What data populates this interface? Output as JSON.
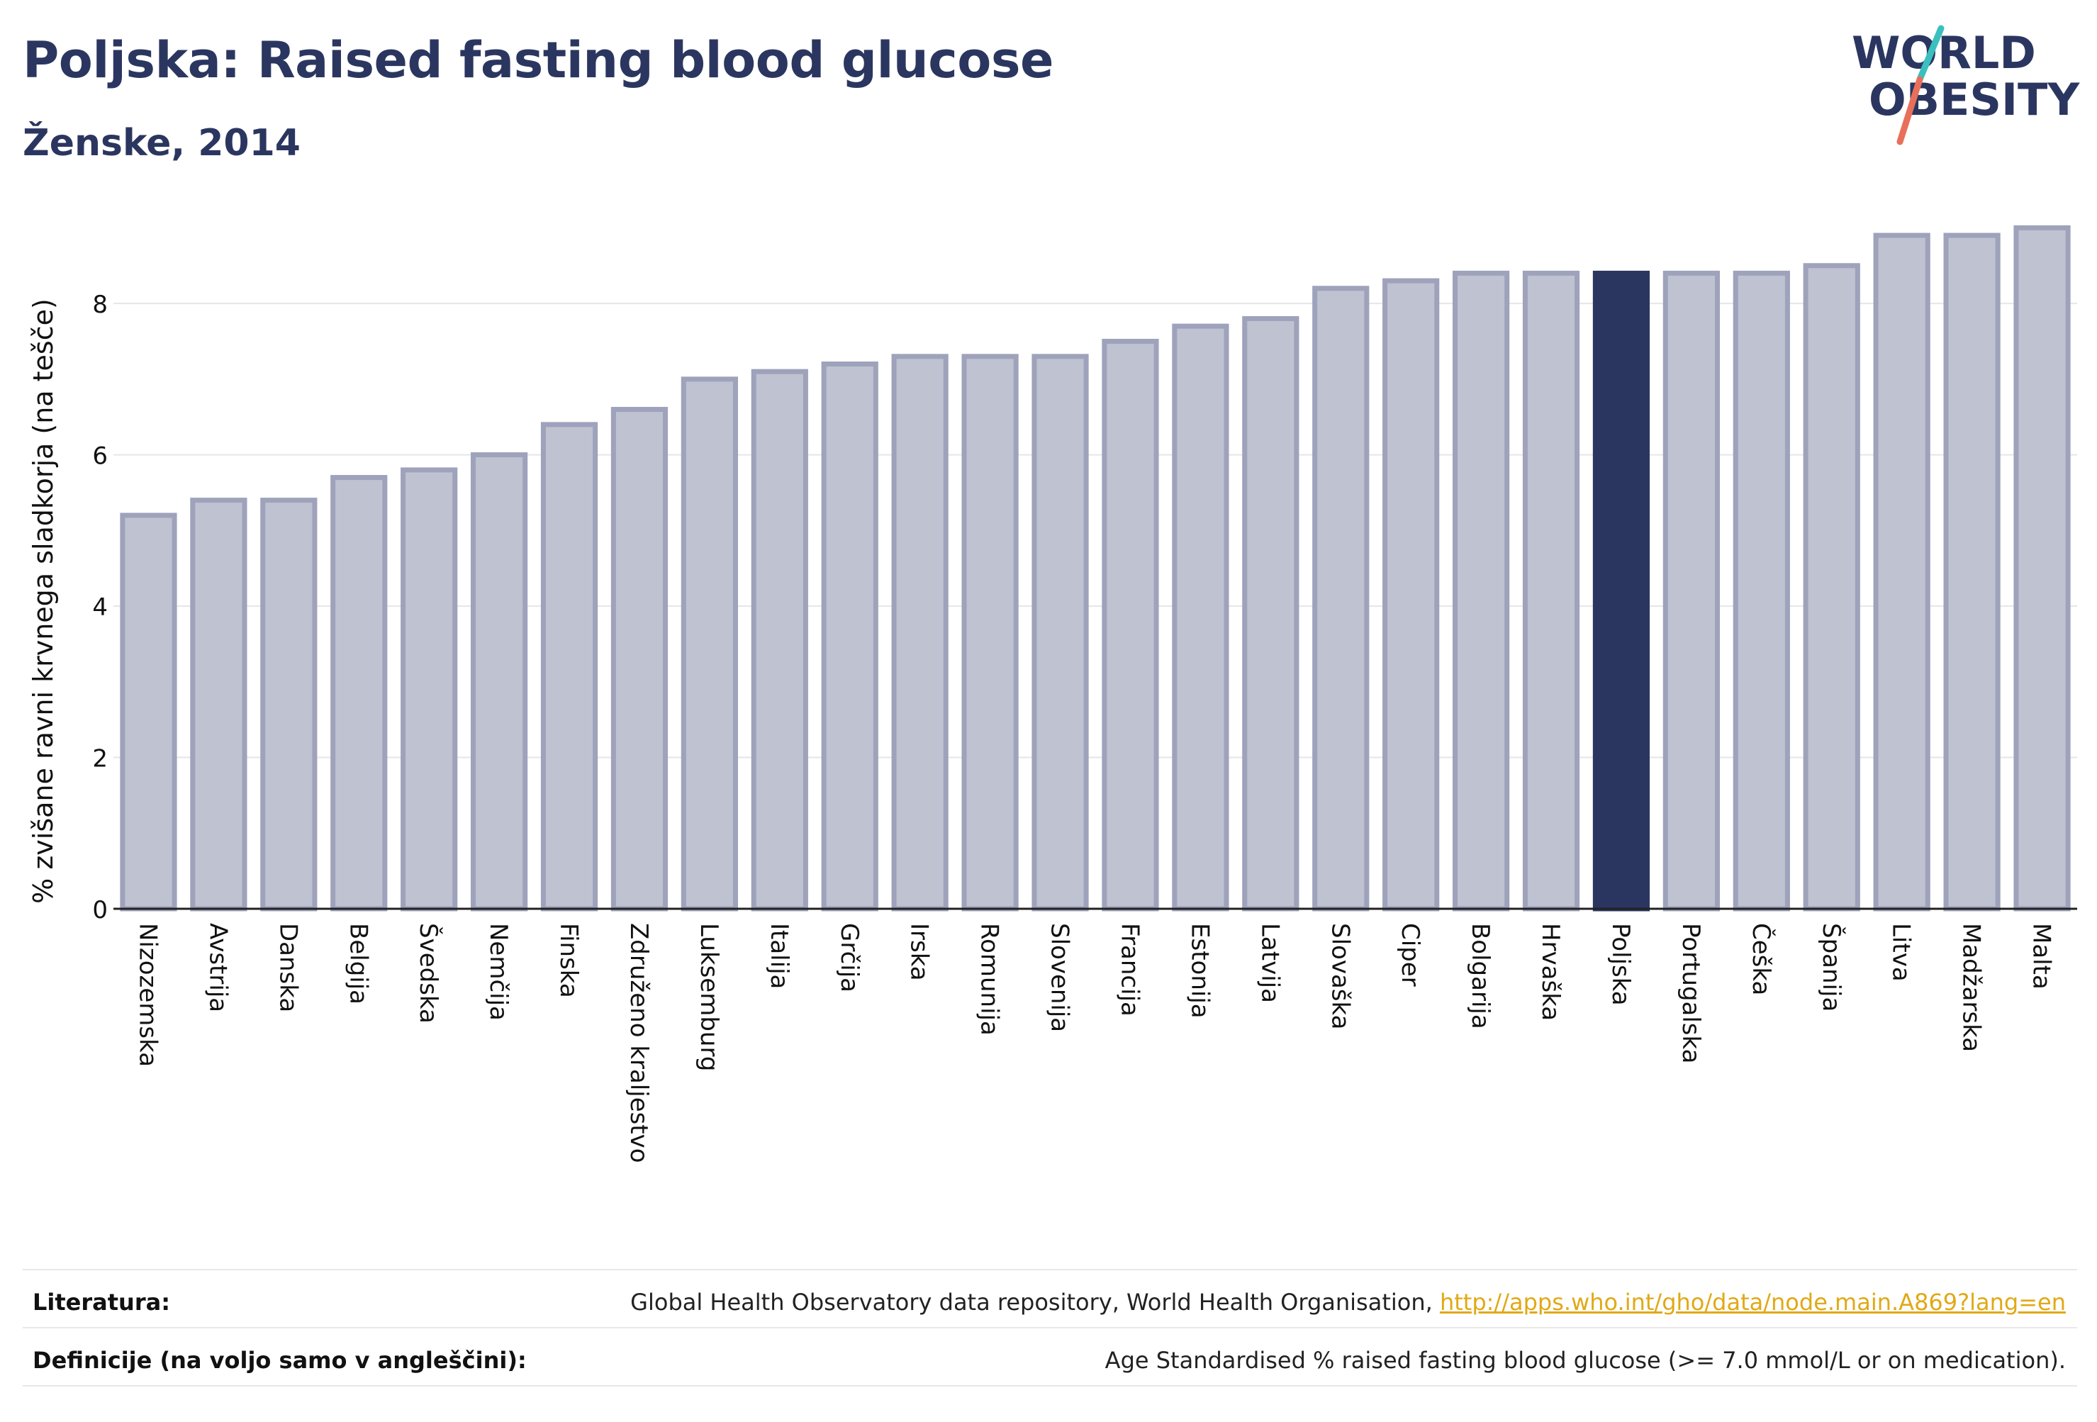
{
  "header": {
    "title": "Poljska: Raised fasting blood glucose",
    "subtitle": "Ženske, 2014"
  },
  "logo": {
    "line1": "WORLD",
    "line2": "OBESITY",
    "accent_colors": [
      "#3bbfbf",
      "#e8705a"
    ]
  },
  "chart_data": {
    "type": "bar",
    "ylabel": "% zvišane ravni krvnega sladkorja (na tešče)",
    "ylim": [
      0,
      9.2
    ],
    "yticks": [
      0,
      2,
      4,
      6,
      8
    ],
    "grid": true,
    "highlight": "Poljska",
    "colors": {
      "bar": "#bfc2d0",
      "bar_border": "#9ea2bb",
      "highlight": "#2b3660"
    },
    "categories": [
      "Nizozemska",
      "Avstrija",
      "Danska",
      "Belgija",
      "Švedska",
      "Nemčija",
      "Finska",
      "Združeno kraljestvo",
      "Luksemburg",
      "Italija",
      "Grčija",
      "Irska",
      "Romunija",
      "Slovenija",
      "Francija",
      "Estonija",
      "Latvija",
      "Slovaška",
      "Ciper",
      "Bolgarija",
      "Hrvaška",
      "Poljska",
      "Portugalska",
      "Češka",
      "Španija",
      "Litva",
      "Madžarska",
      "Malta"
    ],
    "values": [
      5.2,
      5.4,
      5.4,
      5.7,
      5.8,
      6.0,
      6.4,
      6.6,
      7.0,
      7.1,
      7.2,
      7.3,
      7.3,
      7.3,
      7.5,
      7.7,
      7.8,
      8.2,
      8.3,
      8.4,
      8.4,
      8.4,
      8.4,
      8.4,
      8.5,
      8.9,
      8.9,
      9.0
    ]
  },
  "footer": {
    "references_label": "Literatura:",
    "references_text": "Global Health Observatory data repository, World Health Organisation, ",
    "references_link": "http://apps.who.int/gho/data/node.main.A869?lang=en",
    "definitions_label": "Definicije (na voljo samo v angleščini):",
    "definitions_text": "Age Standardised % raised fasting blood glucose (>= 7.0 mmol/L or on medication)."
  }
}
